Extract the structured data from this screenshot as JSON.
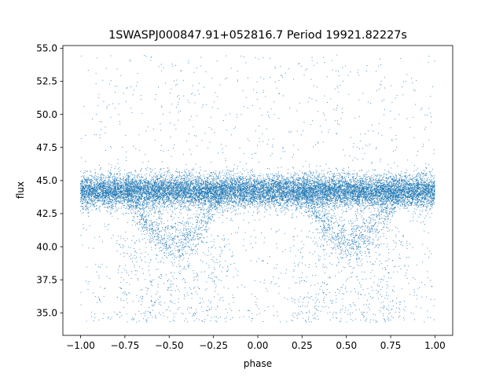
{
  "chart_data": {
    "type": "scatter",
    "title": "1SWASPJ000847.91+052816.7 Period 19921.82227s",
    "xlabel": "phase",
    "ylabel": "flux",
    "xlim": [
      -1.1,
      1.1
    ],
    "ylim": [
      33.3,
      55.2
    ],
    "xticks": [
      -1.0,
      -0.75,
      -0.5,
      -0.25,
      0.0,
      0.25,
      0.5,
      0.75,
      1.0
    ],
    "xtick_labels": [
      "−1.00",
      "−0.75",
      "−0.50",
      "−0.25",
      "0.00",
      "0.25",
      "0.50",
      "0.75",
      "1.00"
    ],
    "yticks": [
      35.0,
      37.5,
      40.0,
      42.5,
      45.0,
      47.5,
      50.0,
      52.5,
      55.0
    ],
    "ytick_labels": [
      "35.0",
      "37.5",
      "40.0",
      "42.5",
      "45.0",
      "47.5",
      "50.0",
      "52.5",
      "55.0"
    ],
    "grid": false,
    "point_color": "#1f77b4",
    "series": [
      {
        "phase_range": [
          -1.0,
          1.0
        ],
        "baseline_flux": 44.2,
        "baseline_spread": 0.6,
        "dip_min_flux": 39.5,
        "dip_phase_centers": [
          -0.47,
          0.53
        ],
        "outlier_flux_range": [
          34.3,
          54.5
        ]
      }
    ]
  }
}
